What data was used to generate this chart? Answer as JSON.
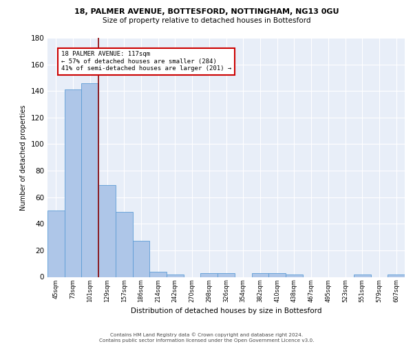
{
  "title1": "18, PALMER AVENUE, BOTTESFORD, NOTTINGHAM, NG13 0GU",
  "title2": "Size of property relative to detached houses in Bottesford",
  "xlabel": "Distribution of detached houses by size in Bottesford",
  "ylabel": "Number of detached properties",
  "bar_values": [
    50,
    141,
    146,
    69,
    49,
    27,
    4,
    2,
    0,
    3,
    3,
    0,
    3,
    3,
    2,
    0,
    0,
    0,
    2,
    0,
    2
  ],
  "bar_labels": [
    "45sqm",
    "73sqm",
    "101sqm",
    "129sqm",
    "157sqm",
    "186sqm",
    "214sqm",
    "242sqm",
    "270sqm",
    "298sqm",
    "326sqm",
    "354sqm",
    "382sqm",
    "410sqm",
    "438sqm",
    "467sqm",
    "495sqm",
    "523sqm",
    "551sqm",
    "579sqm",
    "607sqm"
  ],
  "bar_color": "#aec6e8",
  "bar_edge_color": "#5b9bd5",
  "background_color": "#e8eef8",
  "grid_color": "#ffffff",
  "vline_color": "#8b0000",
  "annotation_text": "18 PALMER AVENUE: 117sqm\n← 57% of detached houses are smaller (284)\n41% of semi-detached houses are larger (201) →",
  "annotation_box_color": "#ffffff",
  "annotation_box_edge": "#cc0000",
  "ylim": [
    0,
    180
  ],
  "footer": "Contains HM Land Registry data © Crown copyright and database right 2024.\nContains public sector information licensed under the Open Government Licence v3.0."
}
